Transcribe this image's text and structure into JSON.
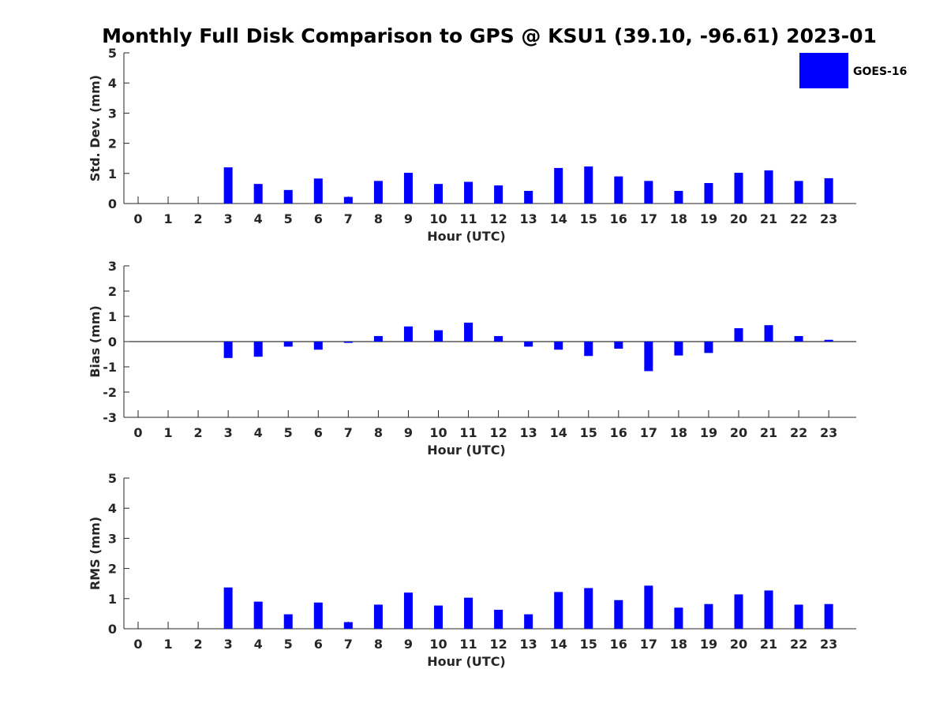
{
  "title": "Monthly Full Disk Comparison to GPS @ KSU1 (39.10, -96.61) 2023-01",
  "legend": {
    "label": "GOES-16",
    "color": "#0000ff",
    "placement": "top-right"
  },
  "chart_data": [
    {
      "type": "bar",
      "xlabel": "Hour (UTC)",
      "ylabel": "Std. Dev. (mm)",
      "ylim": [
        0,
        5
      ],
      "yticks": [
        "0",
        "1",
        "2",
        "3",
        "4",
        "5"
      ],
      "categories": [
        "0",
        "1",
        "2",
        "3",
        "4",
        "5",
        "6",
        "7",
        "8",
        "9",
        "10",
        "11",
        "12",
        "13",
        "14",
        "15",
        "16",
        "17",
        "18",
        "19",
        "20",
        "21",
        "22",
        "23"
      ],
      "series": [
        {
          "name": "GOES-16",
          "values": [
            null,
            null,
            null,
            1.2,
            0.65,
            0.45,
            0.83,
            0.22,
            0.75,
            1.02,
            0.65,
            0.72,
            0.6,
            0.42,
            1.18,
            1.23,
            0.9,
            0.75,
            0.42,
            0.68,
            1.02,
            1.1,
            0.75,
            0.84
          ]
        }
      ]
    },
    {
      "type": "bar",
      "xlabel": "Hour (UTC)",
      "ylabel": "Bias (mm)",
      "ylim": [
        -3,
        3
      ],
      "yticks": [
        "-3",
        "-2",
        "-1",
        "0",
        "1",
        "2",
        "3"
      ],
      "categories": [
        "0",
        "1",
        "2",
        "3",
        "4",
        "5",
        "6",
        "7",
        "8",
        "9",
        "10",
        "11",
        "12",
        "13",
        "14",
        "15",
        "16",
        "17",
        "18",
        "19",
        "20",
        "21",
        "22",
        "23"
      ],
      "series": [
        {
          "name": "GOES-16",
          "values": [
            null,
            null,
            null,
            -0.65,
            -0.6,
            -0.2,
            -0.32,
            -0.05,
            0.22,
            0.6,
            0.45,
            0.75,
            0.22,
            -0.2,
            -0.32,
            -0.57,
            -0.28,
            -1.17,
            -0.55,
            -0.45,
            0.53,
            0.65,
            0.22,
            0.07
          ]
        }
      ]
    },
    {
      "type": "bar",
      "xlabel": "Hour (UTC)",
      "ylabel": "RMS (mm)",
      "ylim": [
        0,
        5
      ],
      "yticks": [
        "0",
        "1",
        "2",
        "3",
        "4",
        "5"
      ],
      "categories": [
        "0",
        "1",
        "2",
        "3",
        "4",
        "5",
        "6",
        "7",
        "8",
        "9",
        "10",
        "11",
        "12",
        "13",
        "14",
        "15",
        "16",
        "17",
        "18",
        "19",
        "20",
        "21",
        "22",
        "23"
      ],
      "series": [
        {
          "name": "GOES-16",
          "values": [
            null,
            null,
            null,
            1.37,
            0.9,
            0.48,
            0.87,
            0.22,
            0.8,
            1.2,
            0.77,
            1.03,
            0.63,
            0.48,
            1.22,
            1.35,
            0.95,
            1.43,
            0.7,
            0.82,
            1.14,
            1.27,
            0.8,
            0.82
          ]
        }
      ]
    }
  ]
}
